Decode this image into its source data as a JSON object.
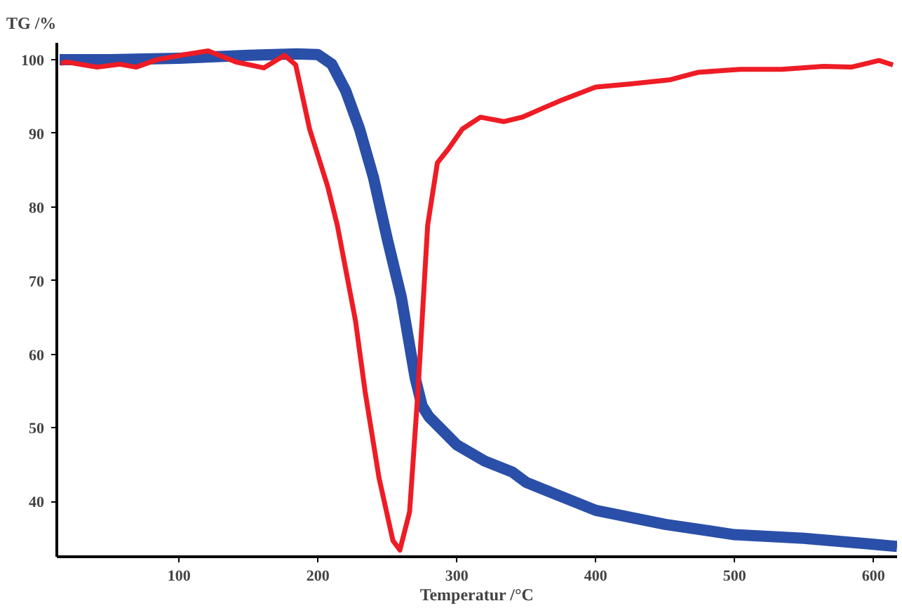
{
  "chart_data": {
    "type": "line",
    "xlabel": "Temperatur /°C",
    "ylabel": "TG /%",
    "xlim": [
      12,
      617
    ],
    "ylim": [
      32.5,
      102.3
    ],
    "xticks": [
      100,
      200,
      300,
      400,
      500,
      600
    ],
    "yticks": [
      40,
      50,
      60,
      70,
      80,
      90,
      100
    ],
    "grid": false,
    "marker": "none",
    "line_style": "solid",
    "series": [
      {
        "color": "#2a4fa8",
        "x": [
          14,
          50,
          100,
          150,
          185,
          200,
          210,
          220,
          230,
          240,
          250,
          260,
          270,
          275,
          280,
          300,
          320,
          340,
          350,
          400,
          450,
          500,
          550,
          600,
          617
        ],
        "values": [
          100,
          100,
          100.2,
          100.6,
          100.8,
          100.7,
          99.4,
          95.8,
          90.6,
          84,
          75.6,
          67.8,
          56.8,
          53,
          51.5,
          47.7,
          45.5,
          44,
          42.6,
          38.8,
          36.9,
          35.5,
          35,
          34.2,
          33.9
        ]
      },
      {
        "color": "#ee1c25",
        "x": [
          15,
          19,
          41,
          57,
          69,
          84,
          101,
          121,
          141,
          161,
          176,
          184,
          194,
          207,
          214,
          227,
          234,
          244,
          254,
          259,
          266,
          272,
          279,
          286,
          294,
          304,
          317,
          334,
          347,
          374,
          400,
          424,
          454,
          474,
          504,
          534,
          564,
          584,
          604,
          614
        ],
        "values": [
          99.5,
          99.7,
          99,
          99.4,
          99,
          100,
          100.6,
          101.2,
          99.7,
          98.9,
          100.6,
          99.3,
          90.6,
          82.8,
          77.5,
          64.6,
          54.9,
          43.2,
          34.7,
          33.4,
          38.6,
          54.9,
          77.5,
          86,
          87.9,
          90.6,
          92.2,
          91.6,
          92.2,
          94.4,
          96.3,
          96.7,
          97.3,
          98.3,
          98.7,
          98.7,
          99.1,
          99,
          99.9,
          99.3
        ]
      }
    ]
  }
}
